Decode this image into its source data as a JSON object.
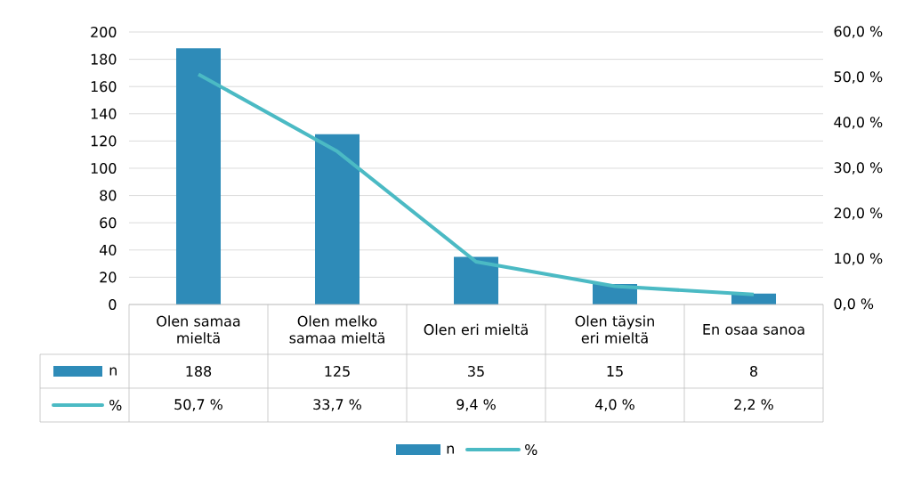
{
  "chart_data": {
    "type": "bar",
    "categories": [
      "Olen samaa mieltä",
      "Olen melko samaa mieltä",
      "Olen eri mieltä",
      "Olen täysin eri mieltä",
      "En osaa sanoa"
    ],
    "series": [
      {
        "name": "n",
        "color": "#2e8bb8",
        "values": [
          188,
          125,
          35,
          15,
          8
        ],
        "value_labels": [
          "188",
          "125",
          "35",
          "15",
          "8"
        ]
      },
      {
        "name": "%",
        "type": "line",
        "axis": "y2",
        "color": "#4bbac4",
        "values": [
          50.7,
          33.7,
          9.4,
          4.0,
          2.2
        ],
        "value_labels": [
          "50,7 %",
          "33,7 %",
          "9,4 %",
          "4,0 %",
          "2,2 %"
        ]
      }
    ],
    "ylim": [
      0,
      200
    ],
    "yticks": [
      0,
      20,
      40,
      60,
      80,
      100,
      120,
      140,
      160,
      180,
      200
    ],
    "y2lim": [
      0,
      60
    ],
    "y2ticks": [
      {
        "value": 0,
        "label": "0,0 %"
      },
      {
        "value": 10,
        "label": "10,0 %"
      },
      {
        "value": 20,
        "label": "20,0 %"
      },
      {
        "value": 30,
        "label": "30,0 %"
      },
      {
        "value": 40,
        "label": "40,0 %"
      },
      {
        "value": 50,
        "label": "50,0 %"
      },
      {
        "value": 60,
        "label": "60,0 %"
      }
    ],
    "grid": "y",
    "legend": "bottom"
  }
}
